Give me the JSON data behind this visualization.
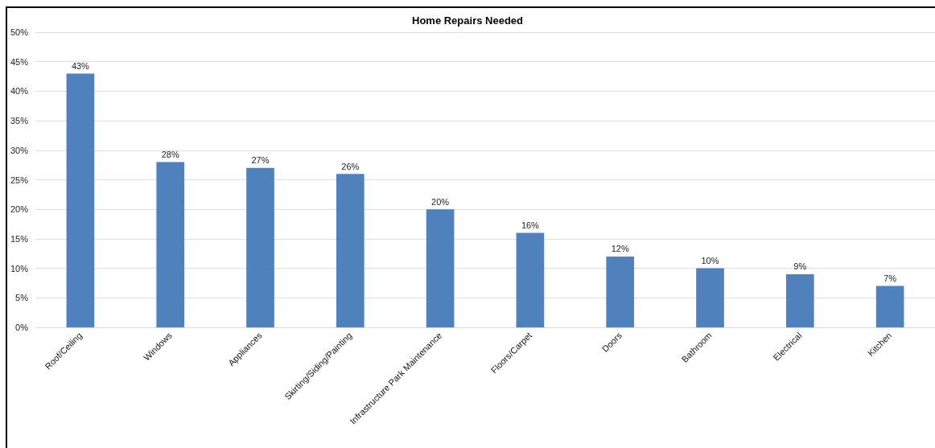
{
  "chart_data": {
    "type": "bar",
    "title": "Home Repairs Needed",
    "categories": [
      "Roof/Ceiling",
      "Windows",
      "Appliances",
      "Skirting/Siding/Painting",
      "Infrastructure Park Maintenance",
      "Floors/Carpet",
      "Doors",
      "Bathroom",
      "Electrical",
      "Kitchen"
    ],
    "values": [
      43,
      28,
      27,
      26,
      20,
      16,
      12,
      10,
      9,
      7
    ],
    "value_labels": [
      "43%",
      "28%",
      "27%",
      "26%",
      "20%",
      "16%",
      "12%",
      "10%",
      "9%",
      "7%"
    ],
    "color": "#4f81bd",
    "ylim": [
      0,
      50
    ],
    "yticks": [
      {
        "value": 0,
        "label": "0%"
      },
      {
        "value": 5,
        "label": "5%"
      },
      {
        "value": 10,
        "label": "10%"
      },
      {
        "value": 15,
        "label": "15%"
      },
      {
        "value": 20,
        "label": "20%"
      },
      {
        "value": 25,
        "label": "25%"
      },
      {
        "value": 30,
        "label": "30%"
      },
      {
        "value": 35,
        "label": "35%"
      },
      {
        "value": 40,
        "label": "40%"
      },
      {
        "value": 45,
        "label": "45%"
      },
      {
        "value": 50,
        "label": "50%"
      }
    ],
    "grid": "y"
  }
}
